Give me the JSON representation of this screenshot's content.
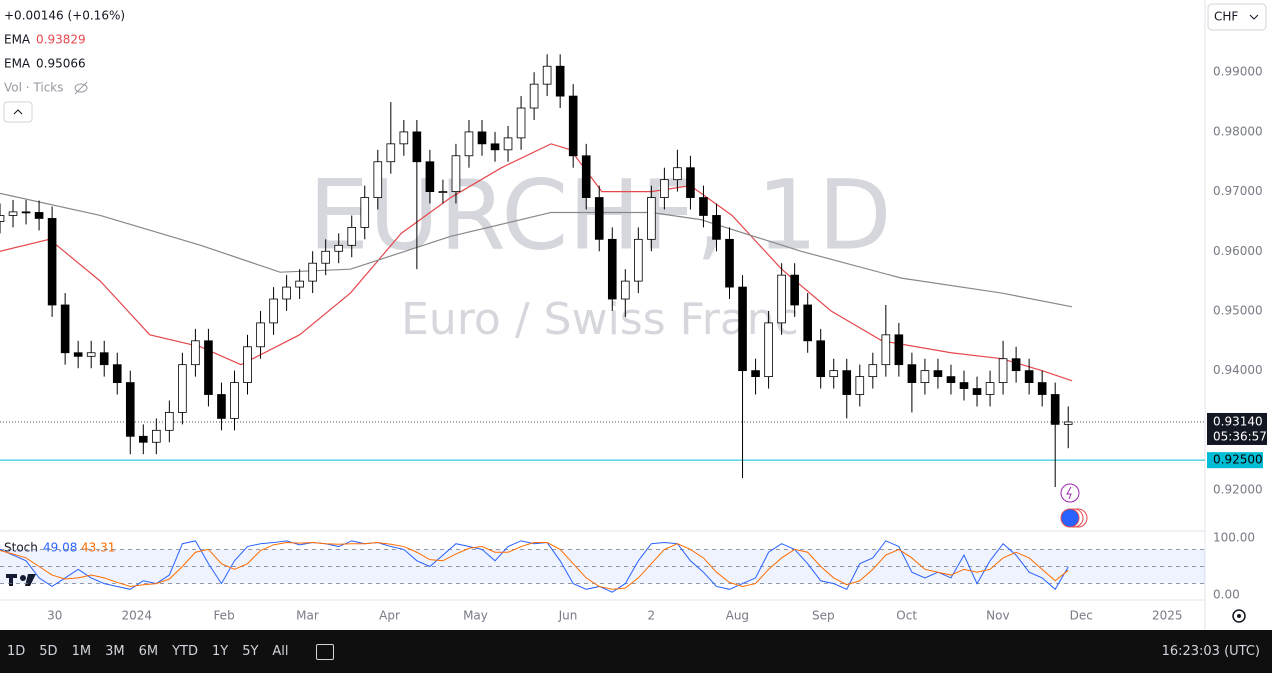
{
  "chart_data": [
    {
      "type": "candlestick",
      "symbol": "EURCHF, 1D",
      "description": "Euro / Swiss Franc",
      "change": "+0.00146 (+0.16%)",
      "currency": "CHF",
      "volume_label": "Vol · Ticks",
      "open": [
        0.965,
        0.966,
        0.9666,
        0.9665,
        0.9655,
        0.951,
        0.943,
        0.9424,
        0.943,
        0.941,
        0.938,
        0.929,
        0.928,
        0.93,
        0.933,
        0.941,
        0.945,
        0.936,
        0.932,
        0.938,
        0.944,
        0.948,
        0.952,
        0.954,
        0.955,
        0.958,
        0.96,
        0.961,
        0.964,
        0.969,
        0.975,
        0.978,
        0.98,
        0.975,
        0.97,
        0.97,
        0.976,
        0.98,
        0.978,
        0.977,
        0.979,
        0.984,
        0.988,
        0.991,
        0.986,
        0.976,
        0.969,
        0.962,
        0.952,
        0.955,
        0.962,
        0.969,
        0.972,
        0.974,
        0.969,
        0.966,
        0.962,
        0.954,
        0.94,
        0.939,
        0.948,
        0.956,
        0.951,
        0.945,
        0.939,
        0.94,
        0.936,
        0.939,
        0.941,
        0.946,
        0.941,
        0.938,
        0.94,
        0.939,
        0.938,
        0.937,
        0.936,
        0.938,
        0.942,
        0.94,
        0.938,
        0.936,
        0.931
      ],
      "high": [
        0.968,
        0.9686,
        0.9686,
        0.9685,
        0.9675,
        0.953,
        0.945,
        0.945,
        0.945,
        0.943,
        0.94,
        0.931,
        0.932,
        0.935,
        0.943,
        0.947,
        0.947,
        0.938,
        0.94,
        0.946,
        0.95,
        0.954,
        0.956,
        0.957,
        0.96,
        0.962,
        0.963,
        0.966,
        0.971,
        0.977,
        0.985,
        0.982,
        0.982,
        0.977,
        0.972,
        0.978,
        0.982,
        0.982,
        0.98,
        0.981,
        0.986,
        0.99,
        0.993,
        0.993,
        0.988,
        0.978,
        0.971,
        0.964,
        0.957,
        0.964,
        0.971,
        0.974,
        0.977,
        0.976,
        0.971,
        0.968,
        0.964,
        0.956,
        0.942,
        0.95,
        0.958,
        0.958,
        0.953,
        0.947,
        0.942,
        0.942,
        0.941,
        0.943,
        0.951,
        0.948,
        0.943,
        0.942,
        0.942,
        0.941,
        0.94,
        0.939,
        0.94,
        0.945,
        0.944,
        0.942,
        0.94,
        0.938,
        0.934
      ],
      "low": [
        0.963,
        0.964,
        0.9645,
        0.9635,
        0.949,
        0.941,
        0.9404,
        0.9404,
        0.939,
        0.936,
        0.926,
        0.926,
        0.926,
        0.928,
        0.931,
        0.939,
        0.934,
        0.93,
        0.93,
        0.936,
        0.942,
        0.946,
        0.95,
        0.952,
        0.953,
        0.956,
        0.958,
        0.959,
        0.962,
        0.967,
        0.973,
        0.976,
        0.957,
        0.968,
        0.968,
        0.968,
        0.974,
        0.976,
        0.975,
        0.975,
        0.977,
        0.982,
        0.986,
        0.984,
        0.974,
        0.967,
        0.96,
        0.95,
        0.949,
        0.953,
        0.96,
        0.967,
        0.97,
        0.967,
        0.964,
        0.96,
        0.952,
        0.922,
        0.936,
        0.937,
        0.946,
        0.949,
        0.943,
        0.937,
        0.937,
        0.932,
        0.934,
        0.937,
        0.939,
        0.939,
        0.933,
        0.936,
        0.937,
        0.936,
        0.935,
        0.934,
        0.934,
        0.936,
        0.938,
        0.936,
        0.934,
        0.9205,
        0.927
      ],
      "close": [
        0.966,
        0.9666,
        0.9665,
        0.9655,
        0.951,
        0.943,
        0.9424,
        0.943,
        0.941,
        0.938,
        0.929,
        0.928,
        0.93,
        0.933,
        0.941,
        0.945,
        0.936,
        0.932,
        0.938,
        0.944,
        0.948,
        0.952,
        0.954,
        0.955,
        0.958,
        0.96,
        0.961,
        0.964,
        0.969,
        0.975,
        0.978,
        0.98,
        0.975,
        0.97,
        0.97,
        0.976,
        0.98,
        0.978,
        0.977,
        0.979,
        0.984,
        0.988,
        0.991,
        0.986,
        0.976,
        0.969,
        0.962,
        0.952,
        0.955,
        0.962,
        0.969,
        0.972,
        0.974,
        0.969,
        0.966,
        0.962,
        0.954,
        0.94,
        0.939,
        0.948,
        0.956,
        0.951,
        0.945,
        0.939,
        0.94,
        0.936,
        0.939,
        0.941,
        0.946,
        0.941,
        0.938,
        0.94,
        0.939,
        0.938,
        0.937,
        0.936,
        0.938,
        0.942,
        0.94,
        0.938,
        0.936,
        0.931,
        0.9314
      ],
      "up_color": "#ffffff",
      "down_color": "#000000",
      "outline_color": "#000000",
      "lines": [
        {
          "name": "EMA",
          "last": 0.93829,
          "color": "#e5484d",
          "x": [
            0,
            3.8,
            7.7,
            11.5,
            15.4,
            18.5,
            23,
            26.9,
            30.8,
            34.6,
            38.5,
            42.3,
            43.8,
            46.2,
            50,
            53,
            56.2,
            60,
            63.8,
            67.7,
            73,
            76.9,
            80,
            82.3
          ],
          "values": [
            0.96,
            0.962,
            0.955,
            0.946,
            0.944,
            0.941,
            0.946,
            0.953,
            0.963,
            0.969,
            0.974,
            0.978,
            0.977,
            0.97,
            0.97,
            0.971,
            0.966,
            0.957,
            0.95,
            0.945,
            0.943,
            0.942,
            0.94,
            0.9383
          ]
        },
        {
          "name": "EMA",
          "last": 0.95066,
          "color": "#888888",
          "x": [
            0,
            7.7,
            15.4,
            21.5,
            26.9,
            34.6,
            42.3,
            50,
            53.8,
            61.5,
            69.2,
            76.9,
            82.3
          ],
          "values": [
            0.9697,
            0.966,
            0.961,
            0.9565,
            0.957,
            0.9625,
            0.9665,
            0.9665,
            0.9653,
            0.96,
            0.9555,
            0.953,
            0.9507
          ]
        }
      ],
      "last_price": {
        "value": 0.9314,
        "label": "0.93140"
      },
      "countdown": "05:36:57",
      "level": {
        "value": 0.925,
        "label": "0.92500"
      },
      "level_color": "#00bcd4",
      "xlim": [
        0,
        92.5
      ],
      "ylim": [
        0.9133,
        1.0021
      ],
      "yticks": [
        {
          "value": 0.92,
          "label": "0.92000"
        },
        {
          "value": 0.93,
          "label": "0.93000"
        },
        {
          "value": 0.94,
          "label": "0.94000"
        },
        {
          "value": 0.95,
          "label": "0.95000"
        },
        {
          "value": 0.96,
          "label": "0.96000"
        },
        {
          "value": 0.97,
          "label": "0.97000"
        },
        {
          "value": 0.98,
          "label": "0.98000"
        },
        {
          "value": 0.99,
          "label": "0.99000"
        }
      ],
      "xticks": [
        {
          "value": 4.2,
          "label": "30"
        },
        {
          "value": 10.5,
          "label": "2024"
        },
        {
          "value": 17.2,
          "label": "Feb"
        },
        {
          "value": 23.6,
          "label": "Mar"
        },
        {
          "value": 29.9,
          "label": "Apr"
        },
        {
          "value": 36.5,
          "label": "May"
        },
        {
          "value": 43.6,
          "label": "Jun"
        },
        {
          "value": 50,
          "label": "2"
        },
        {
          "value": 56.6,
          "label": "Aug"
        },
        {
          "value": 63.2,
          "label": "Sep"
        },
        {
          "value": 69.6,
          "label": "Oct"
        },
        {
          "value": 76.6,
          "label": "Nov"
        },
        {
          "value": 83,
          "label": "Dec"
        },
        {
          "value": 89.6,
          "label": "2025"
        }
      ]
    },
    {
      "type": "line",
      "name": "Stoch",
      "xlim": [
        0,
        92.5
      ],
      "ylim": [
        0,
        100
      ],
      "yticks": [
        {
          "value": 100,
          "label": "100.00"
        },
        {
          "value": 0,
          "label": "0.00"
        }
      ],
      "levels": [
        20,
        50,
        80
      ],
      "band_color": "#2962ff",
      "series": [
        {
          "name": "K",
          "color": "#2962ff",
          "last": 49.08,
          "values": [
            80,
            70,
            60,
            30,
            15,
            30,
            45,
            30,
            20,
            15,
            10,
            25,
            20,
            35,
            90,
            95,
            55,
            20,
            60,
            85,
            90,
            92,
            95,
            88,
            92,
            90,
            85,
            95,
            90,
            92,
            85,
            80,
            60,
            50,
            70,
            90,
            85,
            80,
            60,
            85,
            95,
            90,
            92,
            60,
            20,
            10,
            15,
            5,
            20,
            60,
            90,
            92,
            90,
            60,
            40,
            15,
            10,
            20,
            30,
            75,
            90,
            80,
            55,
            25,
            20,
            10,
            55,
            65,
            95,
            85,
            40,
            30,
            40,
            30,
            70,
            20,
            60,
            90,
            70,
            40,
            30,
            10,
            49.08
          ]
        },
        {
          "name": "D",
          "color": "#ff6d00",
          "last": 43.31,
          "values": [
            78,
            72,
            65,
            50,
            35,
            28,
            30,
            35,
            30,
            22,
            15,
            18,
            20,
            28,
            50,
            75,
            80,
            55,
            45,
            55,
            78,
            88,
            92,
            91,
            92,
            90,
            89,
            90,
            90,
            92,
            89,
            85,
            75,
            62,
            60,
            72,
            82,
            85,
            75,
            75,
            85,
            92,
            92,
            80,
            55,
            30,
            15,
            10,
            12,
            30,
            55,
            80,
            90,
            80,
            65,
            40,
            22,
            15,
            20,
            45,
            65,
            80,
            75,
            50,
            30,
            18,
            25,
            45,
            70,
            80,
            65,
            45,
            40,
            35,
            45,
            40,
            45,
            65,
            75,
            65,
            45,
            25,
            43.31
          ]
        }
      ]
    }
  ],
  "ui": {
    "timeframes": [
      "1D",
      "5D",
      "1M",
      "3M",
      "6M",
      "YTD",
      "1Y",
      "5Y",
      "All"
    ],
    "clock": "16:23:03 (UTC)"
  }
}
